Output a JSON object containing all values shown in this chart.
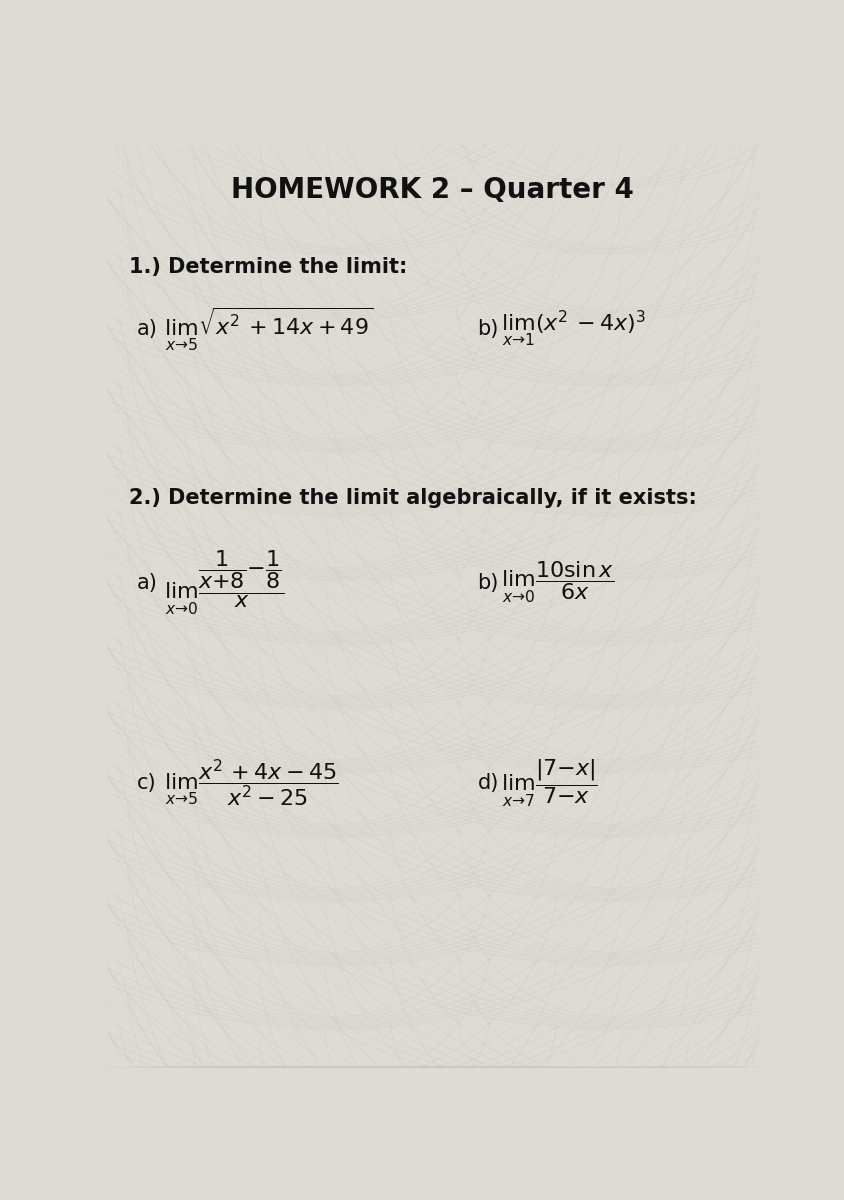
{
  "title": "HOMEWORK 2 – Quarter 4",
  "bg_color_light": "#dedad4",
  "bg_color_dark": "#c8c4be",
  "text_color": "#111111",
  "title_fontsize": 20,
  "title_fontweight": "bold",
  "section1_label": "1.) Determine the limit:",
  "section2_label": "2.) Determine the limit algebraically, if it exists:",
  "section_fontsize": 15,
  "math_fontsize": 16,
  "label_fontsize": 15
}
